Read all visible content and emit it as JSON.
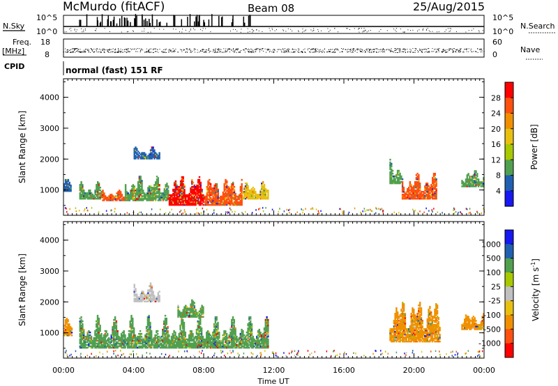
{
  "header": {
    "station": "McMurdo (fitACF)",
    "beam": "Beam 08",
    "date": "25/Aug/2015"
  },
  "top_panels": {
    "nsky_label": "N.Sky",
    "nsky_ticks": [
      "10^5",
      "10^0"
    ],
    "nsearch_label": "N.Search",
    "nsearch_ticks": [
      "10^5",
      "10^0"
    ],
    "freq_label": "Freq.",
    "freq_unit": "[MHz]",
    "freq_ticks": [
      "18",
      "8"
    ],
    "nave_label": "Nave",
    "nave_ticks": [
      "60",
      "0"
    ],
    "cpid_label": "CPID",
    "cpid_value": "normal (fast) 151 RF"
  },
  "chart_data": [
    {
      "type": "heatmap",
      "name": "power",
      "ylabel": "Slant Range [km]",
      "yticks": [
        "4000",
        "3000",
        "2000",
        "1000"
      ],
      "ylim": [
        180,
        4600
      ],
      "xlim": [
        0,
        24
      ],
      "colorbar": {
        "label": "Power [dB]",
        "ticks": [
          "28",
          "24",
          "20",
          "16",
          "12",
          "8",
          "4"
        ],
        "colors": [
          "#ff0000",
          "#ff5010",
          "#f09000",
          "#e8c010",
          "#a8c800",
          "#50a050",
          "#2060b0",
          "#1818f0"
        ]
      },
      "blobs": [
        {
          "t0": 0.0,
          "t1": 0.45,
          "r0": 950,
          "r1": 1400,
          "c": "#2060b0"
        },
        {
          "t0": 0.9,
          "t1": 2.2,
          "r0": 700,
          "r1": 1250,
          "c": "#50a050"
        },
        {
          "t0": 2.2,
          "t1": 3.8,
          "r0": 650,
          "r1": 1000,
          "c": "#ff5010"
        },
        {
          "t0": 3.5,
          "t1": 6.0,
          "r0": 650,
          "r1": 1500,
          "c": "#50a050"
        },
        {
          "t0": 6.0,
          "t1": 8.0,
          "r0": 500,
          "r1": 1600,
          "c": "#ff0000"
        },
        {
          "t0": 8.0,
          "t1": 10.2,
          "r0": 500,
          "r1": 1500,
          "c": "#ff5010"
        },
        {
          "t0": 10.2,
          "t1": 11.7,
          "r0": 700,
          "r1": 1300,
          "c": "#e8c010"
        },
        {
          "t0": 4.0,
          "t1": 5.5,
          "r0": 2000,
          "r1": 2400,
          "c": "#2060b0"
        },
        {
          "t0": 18.6,
          "t1": 19.3,
          "r0": 1200,
          "r1": 2000,
          "c": "#50a050"
        },
        {
          "t0": 19.3,
          "t1": 21.3,
          "r0": 700,
          "r1": 1600,
          "c": "#ff5010"
        },
        {
          "t0": 22.7,
          "t1": 24.0,
          "r0": 1100,
          "r1": 1700,
          "c": "#50a050"
        }
      ]
    },
    {
      "type": "heatmap",
      "name": "velocity",
      "ylabel": "Slant Range [km]",
      "yticks": [
        "4000",
        "3000",
        "2000",
        "1000"
      ],
      "ylim": [
        180,
        4600
      ],
      "xlim": [
        0,
        24
      ],
      "xticks": [
        "00:00",
        "04:00",
        "08:00",
        "12:00",
        "16:00",
        "20:00",
        "00:00"
      ],
      "xlabel": "Time UT",
      "colorbar": {
        "label": "Velocity [m s^-1]",
        "ticks": [
          "1000",
          "500",
          "100",
          "25",
          "-25",
          "-100",
          "-500",
          "-1000"
        ],
        "colors": [
          "#1818f0",
          "#2060b0",
          "#50a050",
          "#a8c800",
          "#c0c0c0",
          "#e8c010",
          "#f09000",
          "#ff5010",
          "#ff0000"
        ]
      },
      "blobs": [
        {
          "t0": 0.0,
          "t1": 0.5,
          "r0": 900,
          "r1": 1500,
          "c": "#f09000"
        },
        {
          "t0": 0.9,
          "t1": 11.7,
          "r0": 500,
          "r1": 1550,
          "c": "#50a050"
        },
        {
          "t0": 4.0,
          "t1": 5.5,
          "r0": 2000,
          "r1": 2600,
          "c": "#c0c0c0"
        },
        {
          "t0": 6.5,
          "t1": 8.0,
          "r0": 1500,
          "r1": 2100,
          "c": "#50a050"
        },
        {
          "t0": 18.6,
          "t1": 21.5,
          "r0": 700,
          "r1": 2200,
          "c": "#f09000"
        },
        {
          "t0": 22.7,
          "t1": 24.0,
          "r0": 1100,
          "r1": 1700,
          "c": "#f09000"
        }
      ]
    }
  ]
}
